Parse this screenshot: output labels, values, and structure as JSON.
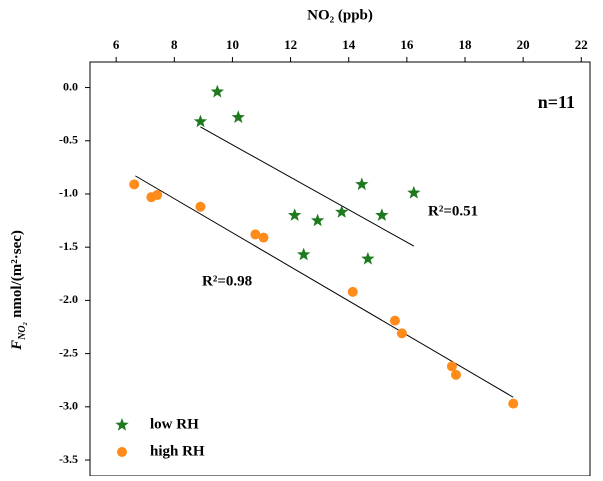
{
  "chart_data": {
    "type": "scatter",
    "xlabel": "NO₂ (ppb)",
    "ylabel": [
      "F",
      "NO₂",
      "nmol/(m²·sec)"
    ],
    "annotations": [
      "n=11",
      "R²=0.51",
      "R²=0.98"
    ],
    "xlim": [
      5.1,
      22.3
    ],
    "ylim": [
      -3.65,
      0.24
    ],
    "xticks": [
      6,
      8,
      10,
      12,
      14,
      16,
      18,
      20,
      22
    ],
    "yticks": [
      {
        "value": 0,
        "label": "0.0"
      },
      -0.5,
      {
        "value": -1,
        "label": "-1.0"
      },
      -1.5,
      {
        "value": -2,
        "label": "-2.0"
      },
      -2.5,
      {
        "value": -3,
        "label": "-3.0"
      },
      -3.5
    ],
    "legend": "bottom-left",
    "series": [
      {
        "name": "low RH",
        "color": "#1f7a1f",
        "marker": "star",
        "x": [
          9.48,
          8.9,
          10.2,
          14.45,
          16.24,
          12.14,
          12.93,
          13.76,
          15.14,
          12.45,
          14.66
        ],
        "values": [
          -0.04,
          -0.32,
          -0.28,
          -0.91,
          -0.99,
          -1.2,
          -1.25,
          -1.17,
          -1.2,
          -1.57,
          -1.61
        ],
        "fit": {
          "x": [
            8.9,
            16.24
          ],
          "values": [
            -0.37,
            -1.49
          ]
        }
      },
      {
        "name": "high RH",
        "color": "#ff8c1a",
        "marker": "circle",
        "x": [
          6.62,
          7.21,
          7.41,
          8.9,
          10.79,
          11.07,
          14.14,
          15.59,
          15.83,
          17.55,
          17.69,
          19.66
        ],
        "values": [
          -0.91,
          -1.03,
          -1.01,
          -1.12,
          -1.38,
          -1.41,
          -1.92,
          -2.19,
          -2.31,
          -2.62,
          -2.7,
          -2.97
        ],
        "fit": {
          "x": [
            6.66,
            19.66
          ],
          "values": [
            -0.83,
            -2.91
          ]
        }
      }
    ]
  }
}
